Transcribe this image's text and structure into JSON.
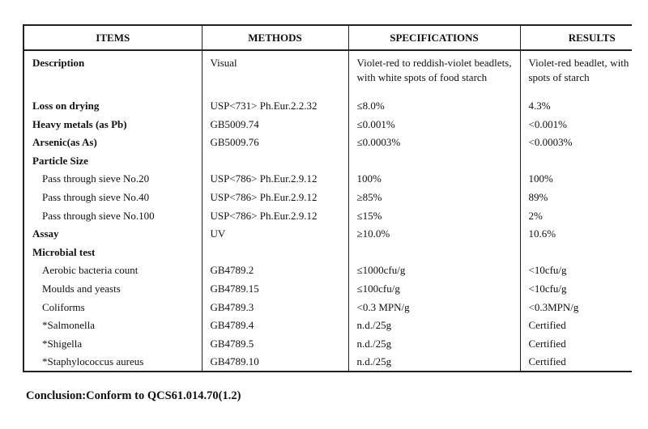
{
  "table": {
    "headers": [
      "ITEMS",
      "METHODS",
      "SPECIFICATIONS",
      "RESULTS"
    ],
    "rows": [
      {
        "item": "Description",
        "method": "Visual",
        "spec": "Violet-red to reddish-violet beadlets, with white spots of food starch",
        "result": "Violet-red beadlet, with white spots of starch",
        "bold": true
      },
      {
        "item": "Loss on drying",
        "method": "USP<731> Ph.Eur.2.2.32",
        "spec": "≤8.0%",
        "result": "4.3%",
        "bold": true
      },
      {
        "item": "Heavy metals (as Pb)",
        "method": "GB5009.74",
        "spec": "≤0.001%",
        "result": "<0.001%",
        "bold": true
      },
      {
        "item": "Arsenic(as As)",
        "method": "GB5009.76",
        "spec": "≤0.0003%",
        "result": "<0.0003%",
        "bold": true
      },
      {
        "item": "Particle Size",
        "method": "",
        "spec": "",
        "result": "",
        "bold": true
      },
      {
        "item": "Pass through sieve No.20",
        "method": "USP<786> Ph.Eur.2.9.12",
        "spec": "100%",
        "result": "100%"
      },
      {
        "item": "Pass through sieve No.40",
        "method": "USP<786> Ph.Eur.2.9.12",
        "spec": "≥85%",
        "result": "89%"
      },
      {
        "item": "Pass through sieve No.100",
        "method": "USP<786> Ph.Eur.2.9.12",
        "spec": "≤15%",
        "result": "2%"
      },
      {
        "item": "Assay",
        "method": "UV",
        "spec": "≥10.0%",
        "result": "10.6%",
        "bold": true
      },
      {
        "item": "Microbial test",
        "method": "",
        "spec": "",
        "result": "",
        "bold": true
      },
      {
        "item": "Aerobic bacteria count",
        "method": "GB4789.2",
        "spec": "≤1000cfu/g",
        "result": "<10cfu/g"
      },
      {
        "item": "Moulds and yeasts",
        "method": "GB4789.15",
        "spec": "≤100cfu/g",
        "result": "<10cfu/g"
      },
      {
        "item": "Coliforms",
        "method": "GB4789.3",
        "spec": "<0.3 MPN/g",
        "result": "<0.3MPN/g"
      },
      {
        "item": "*Salmonella",
        "method": "GB4789.4",
        "spec": "n.d./25g",
        "result": "Certified"
      },
      {
        "item": "*Shigella",
        "method": "GB4789.5",
        "spec": "n.d./25g",
        "result": "Certified"
      },
      {
        "item": "*Staphylococcus aureus",
        "method": "GB4789.10",
        "spec": "n.d./25g",
        "result": "Certified"
      }
    ]
  },
  "conclusion": "Conclusion:Conform to  QCS61.014.70(1.2)"
}
